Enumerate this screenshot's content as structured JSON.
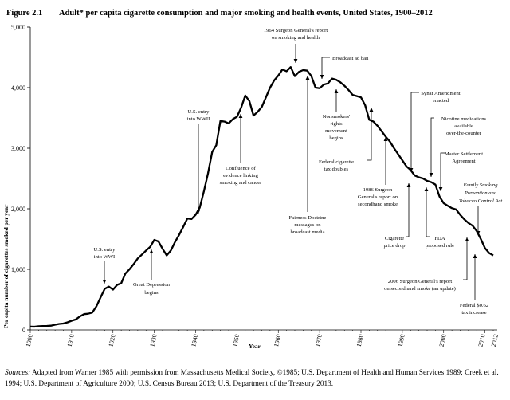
{
  "figure": {
    "label": "Figure 2.1",
    "title": "Adult* per capita cigarette consumption and major smoking and health events, United States, 1900–2012"
  },
  "sources": {
    "label": "Sources:",
    "text": " Adapted from Warner 1985 with permission from Massachusetts Medical Society, ©1985; U.S. Department of Health and Human Services 1989; Creek et al. 1994; U.S. Department of Agriculture 2000; U.S. Census Bureau 2013; U.S. Department of the Treasury 2013."
  },
  "chart_data": {
    "type": "line",
    "title": "Adult* per capita cigarette consumption and major smoking and health events, United States, 1900–2012",
    "xlabel": "Year",
    "ylabel": "Per capita number of cigarettes smoked per year",
    "xlim": [
      1900,
      2012
    ],
    "ylim": [
      0,
      5000
    ],
    "y_ticks": [
      0,
      1000,
      2000,
      3000,
      4000,
      5000
    ],
    "y_tick_labels": [
      "0",
      "1,000",
      "2,000",
      "3,000",
      "4,000",
      "5,000"
    ],
    "x_ticks": [
      1900,
      1910,
      1920,
      1930,
      1940,
      1950,
      1960,
      1970,
      1980,
      1990,
      2000,
      2010,
      2012
    ],
    "x_tick_labels": [
      "1900",
      "1910",
      "1920",
      "1930",
      "1940",
      "1950",
      "1960",
      "1970",
      "1980",
      "1990",
      "2000",
      "2010",
      "2012"
    ],
    "series": [
      {
        "name": "Adult per capita cigarette consumption",
        "x": [
          1900,
          1901,
          1902,
          1903,
          1904,
          1905,
          1906,
          1907,
          1908,
          1909,
          1910,
          1911,
          1912,
          1913,
          1914,
          1915,
          1916,
          1917,
          1918,
          1919,
          1920,
          1921,
          1922,
          1923,
          1924,
          1925,
          1926,
          1927,
          1928,
          1929,
          1930,
          1931,
          1932,
          1933,
          1934,
          1935,
          1936,
          1937,
          1938,
          1939,
          1940,
          1941,
          1942,
          1943,
          1944,
          1945,
          1946,
          1947,
          1948,
          1949,
          1950,
          1951,
          1952,
          1953,
          1954,
          1955,
          1956,
          1957,
          1958,
          1959,
          1960,
          1961,
          1962,
          1963,
          1964,
          1965,
          1966,
          1967,
          1968,
          1969,
          1970,
          1971,
          1972,
          1973,
          1974,
          1975,
          1976,
          1977,
          1978,
          1979,
          1980,
          1981,
          1982,
          1983,
          1984,
          1985,
          1986,
          1987,
          1988,
          1989,
          1990,
          1991,
          1992,
          1993,
          1994,
          1995,
          1996,
          1997,
          1998,
          1999,
          2000,
          2001,
          2002,
          2003,
          2004,
          2005,
          2006,
          2007,
          2008,
          2009,
          2010,
          2011,
          2012
        ],
        "values": [
          54,
          53,
          60,
          64,
          66,
          70,
          86,
          99,
          105,
          125,
          151,
          173,
          223,
          260,
          267,
          285,
          390,
          535,
          678,
          715,
          665,
          742,
          770,
          930,
          1000,
          1085,
          1180,
          1245,
          1310,
          1370,
          1485,
          1460,
          1340,
          1230,
          1310,
          1450,
          1570,
          1700,
          1840,
          1830,
          1900,
          2020,
          2290,
          2590,
          2940,
          3050,
          3450,
          3440,
          3410,
          3480,
          3520,
          3670,
          3870,
          3780,
          3540,
          3600,
          3680,
          3840,
          4000,
          4120,
          4200,
          4300,
          4270,
          4340,
          4190,
          4260,
          4290,
          4280,
          4190,
          4000,
          3990,
          4050,
          4070,
          4150,
          4130,
          4090,
          4030,
          3960,
          3880,
          3860,
          3840,
          3710,
          3470,
          3440,
          3370,
          3280,
          3190,
          3110,
          3000,
          2900,
          2800,
          2700,
          2640,
          2550,
          2520,
          2500,
          2460,
          2440,
          2400,
          2200,
          2092,
          2050,
          2010,
          1990,
          1900,
          1825,
          1765,
          1720,
          1630,
          1500,
          1350,
          1270,
          1230
        ]
      }
    ],
    "annotations": [
      {
        "lines": [
          "U.S. entry",
          "into WWI"
        ],
        "year": 1917
      },
      {
        "lines": [
          "Great Depression",
          "begins"
        ],
        "year": 1929
      },
      {
        "lines": [
          "U.S. entry",
          "into WWII"
        ],
        "year": 1941
      },
      {
        "lines": [
          "Confluence of",
          "evidence linking",
          "smoking and cancer"
        ],
        "year": 1953
      },
      {
        "lines": [
          "1964 Surgeon General's report",
          "on smoking and health"
        ],
        "year": 1964
      },
      {
        "lines": [
          "Fairness Doctrine",
          "messages on",
          "broadcast media"
        ],
        "year": 1968
      },
      {
        "lines": [
          "Broadcast ad ban"
        ],
        "year": 1971
      },
      {
        "lines": [
          "Nonsmokers'",
          "rights",
          "movement",
          "begins"
        ],
        "year": 1976
      },
      {
        "lines": [
          "Federal cigarette",
          "tax doubles"
        ],
        "year": 1983
      },
      {
        "lines": [
          "1986 Surgeon",
          "General's report on",
          "secondhand smoke"
        ],
        "year": 1986
      },
      {
        "lines": [
          "Synar Amendment",
          "enacted"
        ],
        "year": 1992
      },
      {
        "lines": [
          "Cigarette",
          "price drop"
        ],
        "year": 1993
      },
      {
        "lines": [
          "FDA",
          "proposed rule"
        ],
        "year": 1995
      },
      {
        "lines": [
          "Nicotine medications",
          "available",
          "over-the-counter"
        ],
        "year": 1996
      },
      {
        "lines": [
          "Master Settlement",
          "Agreement"
        ],
        "year": 1998
      },
      {
        "lines": [
          "Family Smoking",
          "Prevention and",
          "Tobacco Control Act"
        ],
        "year": 2009
      },
      {
        "lines": [
          "2006 Surgeon General's report",
          "on secondhand smoke (an update)"
        ],
        "year": 2006
      },
      {
        "lines": [
          "Federal $0.62",
          "tax increase"
        ],
        "year": 2009
      }
    ]
  }
}
